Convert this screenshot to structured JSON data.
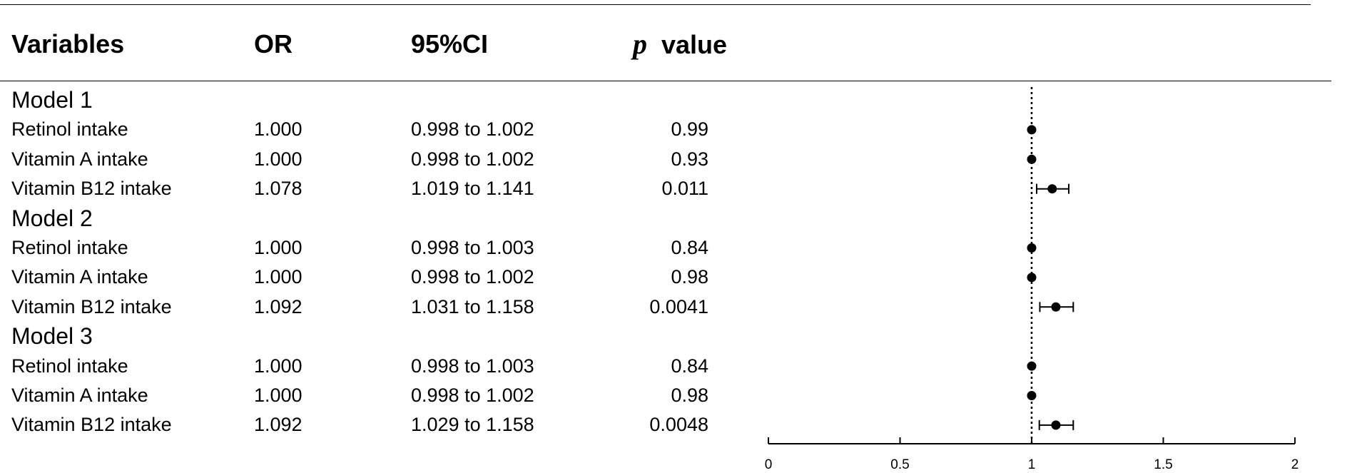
{
  "headers": {
    "variables": "Variables",
    "or": "OR",
    "ci": "95%CI",
    "p_symbol": "p",
    "p_word": "value"
  },
  "rows": [
    {
      "type": "model",
      "label": "Model 1"
    },
    {
      "type": "data",
      "label": "Retinol intake",
      "or": "1.000",
      "ci": "0.998 to 1.002",
      "p": "0.99"
    },
    {
      "type": "data",
      "label": "Vitamin A intake",
      "or": "1.000",
      "ci": "0.998 to 1.002",
      "p": "0.93"
    },
    {
      "type": "data",
      "label": "Vitamin B12 intake",
      "or": "1.078",
      "ci": "1.019 to 1.141",
      "p": "0.011"
    },
    {
      "type": "model",
      "label": "Model  2"
    },
    {
      "type": "data",
      "label": "Retinol intake",
      "or": "1.000",
      "ci": "0.998 to 1.003",
      "p": "0.84"
    },
    {
      "type": "data",
      "label": "Vitamin A intake",
      "or": "1.000",
      "ci": "0.998 to 1.002",
      "p": "0.98"
    },
    {
      "type": "data",
      "label": "Vitamin B12 intake",
      "or": "1.092",
      "ci": "1.031 to 1.158",
      "p": "0.0041"
    },
    {
      "type": "model",
      "label": "Model  3"
    },
    {
      "type": "data",
      "label": "Retinol intake",
      "or": "1.000",
      "ci": "0.998 to 1.003",
      "p": "0.84"
    },
    {
      "type": "data",
      "label": "Vitamin A intake",
      "or": "1.000",
      "ci": "0.998 to 1.002",
      "p": "0.98"
    },
    {
      "type": "data",
      "label": "Vitamin B12 intake",
      "or": "1.092",
      "ci": "1.029 to 1.158",
      "p": "0.0048"
    }
  ],
  "chart_data": {
    "type": "scatter",
    "subtype": "forest-plot",
    "xlim": [
      0,
      2
    ],
    "x_ticks": [
      0,
      0.5,
      1,
      1.5,
      2
    ],
    "x_tick_labels": [
      "0",
      "0.5",
      "1",
      "1.5",
      "2"
    ],
    "reference_line": 1,
    "reference_line_style": "dotted",
    "grid": false,
    "series": [
      {
        "points": [
          {
            "row": 1,
            "or": 1.0,
            "lower": 0.998,
            "upper": 1.002
          },
          {
            "row": 2,
            "or": 1.0,
            "lower": 0.998,
            "upper": 1.002
          },
          {
            "row": 3,
            "or": 1.078,
            "lower": 1.019,
            "upper": 1.141
          },
          {
            "row": 5,
            "or": 1.0,
            "lower": 0.998,
            "upper": 1.003
          },
          {
            "row": 6,
            "or": 1.0,
            "lower": 0.998,
            "upper": 1.002
          },
          {
            "row": 7,
            "or": 1.092,
            "lower": 1.031,
            "upper": 1.158
          },
          {
            "row": 9,
            "or": 1.0,
            "lower": 0.998,
            "upper": 1.003
          },
          {
            "row": 10,
            "or": 1.0,
            "lower": 0.998,
            "upper": 1.002
          },
          {
            "row": 11,
            "or": 1.092,
            "lower": 1.029,
            "upper": 1.158
          }
        ]
      }
    ]
  }
}
